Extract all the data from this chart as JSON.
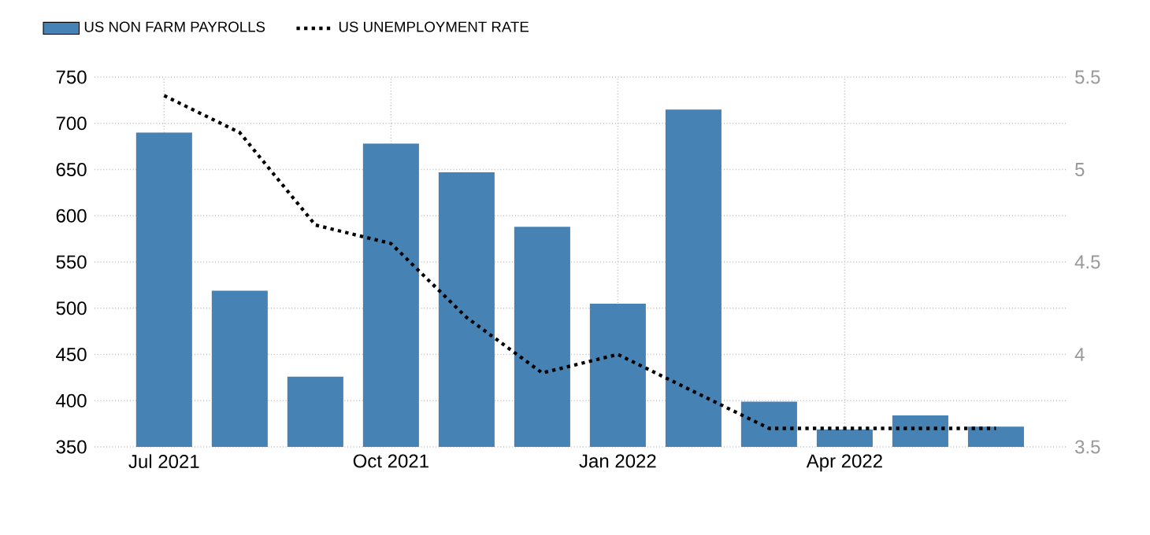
{
  "chart_data": {
    "type": "bar",
    "categories": [
      "Jul 2021",
      null,
      null,
      "Oct 2021",
      null,
      null,
      "Jan 2022",
      null,
      null,
      "Apr 2022",
      null,
      null
    ],
    "series": [
      {
        "name": "US NON FARM PAYROLLS",
        "color": "#4682b4",
        "values": [
          690,
          519,
          426,
          678,
          647,
          588,
          505,
          715,
          399,
          369,
          384,
          372
        ]
      },
      {
        "name": "US UNEMPLOYMENT RATE",
        "type": "line",
        "axis": "y2",
        "color": "#000000",
        "values": [
          5.4,
          5.2,
          4.7,
          4.6,
          4.2,
          3.9,
          4.0,
          3.8,
          3.6,
          3.6,
          3.6,
          3.6
        ]
      }
    ],
    "line_style": "dotted",
    "ylim": [
      350,
      750
    ],
    "yticks": [
      350,
      400,
      450,
      500,
      550,
      600,
      650,
      700,
      750
    ],
    "y2lim": [
      3.5,
      5.5
    ],
    "y2ticks": [
      3.5,
      4,
      4.5,
      5,
      5.5
    ],
    "grid": true,
    "legend": "top left"
  }
}
